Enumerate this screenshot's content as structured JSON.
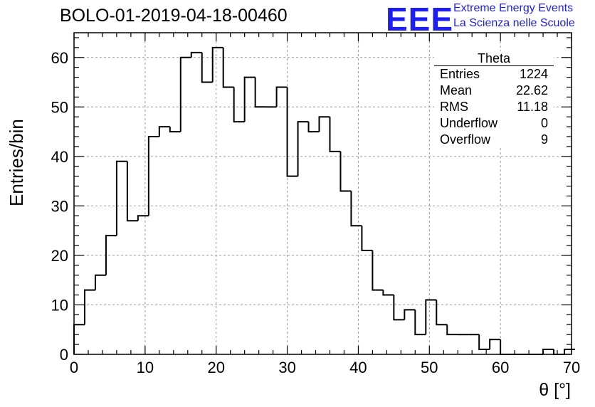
{
  "header": {
    "title": "BOLO-01-2019-04-18-00460",
    "logo_text": "EEE",
    "logo_line1": "Extreme Energy Events",
    "logo_line2": "La Scienza nelle Scuole"
  },
  "stats": {
    "title": "Theta",
    "rows": [
      {
        "key": "Entries",
        "value": "1224"
      },
      {
        "key": "Mean",
        "value": "22.62"
      },
      {
        "key": "RMS",
        "value": "11.18"
      },
      {
        "key": "Underflow",
        "value": "0"
      },
      {
        "key": "Overflow",
        "value": "9"
      }
    ]
  },
  "colors": {
    "line": "#000000",
    "grid": "#9a9a9a",
    "logo": "#1e1ef0"
  },
  "chart_data": {
    "type": "bar",
    "histogram": true,
    "title": "BOLO-01-2019-04-18-00460",
    "xlabel": "θ [°]",
    "ylabel": "Entries/bin",
    "xlim": [
      0,
      70
    ],
    "ylim": [
      0,
      65
    ],
    "xticks": [
      0,
      10,
      20,
      30,
      40,
      50,
      60,
      70
    ],
    "yticks": [
      0,
      10,
      20,
      30,
      40,
      50,
      60
    ],
    "grid": true,
    "bin_width": 1.5,
    "values": [
      6,
      13,
      16,
      24,
      39,
      27,
      28,
      44,
      46,
      45,
      60,
      61,
      55,
      62,
      54,
      47,
      56,
      50,
      50,
      54,
      36,
      47,
      45,
      48,
      41,
      33,
      26,
      21,
      13,
      12,
      7,
      9,
      4,
      11,
      6,
      4,
      4,
      4,
      1,
      3,
      0,
      0,
      0,
      0,
      1,
      0,
      1
    ]
  }
}
